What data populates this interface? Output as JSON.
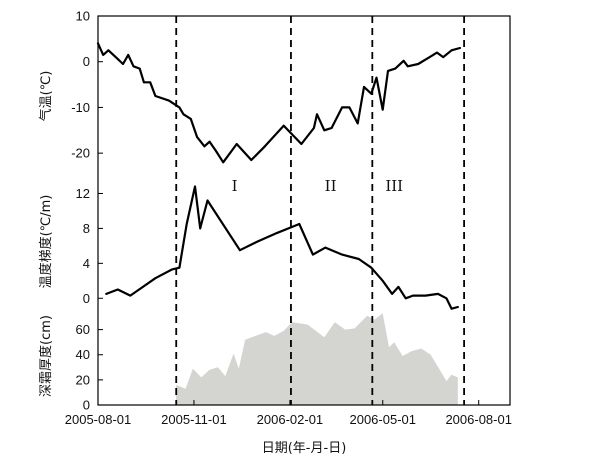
{
  "chart_data": {
    "type": "line",
    "xlabel": "日期(年-月-日)",
    "x_ticks": [
      "2005-08-01",
      "2005-11-01",
      "2006-02-01",
      "2006-05-01",
      "2006-08-01"
    ],
    "x_range": [
      "2005-08-01",
      "2006-08-31"
    ],
    "period_dividers": [
      "2005-10-15",
      "2006-02-02",
      "2006-04-21",
      "2006-07-18"
    ],
    "period_labels": [
      {
        "label": "I",
        "date": "2005-12-10"
      },
      {
        "label": "II",
        "date": "2006-03-12"
      },
      {
        "label": "III",
        "date": "2006-05-12"
      }
    ],
    "panels": [
      {
        "id": "air-temperature",
        "type": "line",
        "ylabel": "气温(℃)",
        "ylim": [
          -25,
          10
        ],
        "yticks": [
          10,
          0,
          -10,
          -20
        ],
        "series": [
          {
            "points": [
              [
                "2005-08-01",
                4
              ],
              [
                "2005-08-06",
                1.5
              ],
              [
                "2005-08-11",
                2.5
              ],
              [
                "2005-08-18",
                1
              ],
              [
                "2005-08-25",
                -0.5
              ],
              [
                "2005-08-30",
                1.5
              ],
              [
                "2005-09-04",
                -1
              ],
              [
                "2005-09-10",
                -1.5
              ],
              [
                "2005-09-14",
                -4.5
              ],
              [
                "2005-09-20",
                -4.5
              ],
              [
                "2005-09-25",
                -7.5
              ],
              [
                "2005-10-08",
                -8.5
              ],
              [
                "2005-10-18",
                -10
              ],
              [
                "2005-10-22",
                -11.5
              ],
              [
                "2005-10-29",
                -12.5
              ],
              [
                "2005-11-04",
                -16.5
              ],
              [
                "2005-11-11",
                -18.5
              ],
              [
                "2005-11-16",
                -17.5
              ],
              [
                "2005-11-22",
                -19.5
              ],
              [
                "2005-11-29",
                -22
              ],
              [
                "2005-12-12",
                -18
              ],
              [
                "2005-12-26",
                -21.5
              ],
              [
                "2006-01-08",
                -18.5
              ],
              [
                "2006-01-26",
                -14
              ],
              [
                "2006-02-12",
                -18
              ],
              [
                "2006-02-24",
                -14.5
              ],
              [
                "2006-02-27",
                -11.5
              ],
              [
                "2006-03-06",
                -15
              ],
              [
                "2006-03-13",
                -14.5
              ],
              [
                "2006-03-23",
                -10
              ],
              [
                "2006-03-30",
                -10
              ],
              [
                "2006-04-07",
                -13.5
              ],
              [
                "2006-04-13",
                -5.5
              ],
              [
                "2006-04-20",
                -7
              ],
              [
                "2006-04-25",
                -3.5
              ],
              [
                "2006-05-01",
                -10.5
              ],
              [
                "2006-05-06",
                -2
              ],
              [
                "2006-05-13",
                -1.5
              ],
              [
                "2006-05-21",
                0.2
              ],
              [
                "2006-05-25",
                -1
              ],
              [
                "2006-06-04",
                -0.5
              ],
              [
                "2006-06-15",
                1
              ],
              [
                "2006-06-22",
                2
              ],
              [
                "2006-06-28",
                1
              ],
              [
                "2006-07-06",
                2.5
              ],
              [
                "2006-07-14",
                3
              ]
            ]
          }
        ]
      },
      {
        "id": "temperature-gradient",
        "type": "line",
        "ylabel": "温度梯度(℃/m)",
        "ylim": [
          -1,
          14
        ],
        "yticks": [
          12,
          8,
          4,
          0
        ],
        "series": [
          {
            "points": [
              [
                "2005-08-09",
                0.5
              ],
              [
                "2005-08-20",
                1
              ],
              [
                "2005-09-01",
                0.3
              ],
              [
                "2005-09-13",
                1.3
              ],
              [
                "2005-09-25",
                2.3
              ],
              [
                "2005-10-11",
                3.3
              ],
              [
                "2005-10-18",
                3.5
              ],
              [
                "2005-10-25",
                8.5
              ],
              [
                "2005-11-02",
                12.8
              ],
              [
                "2005-11-07",
                8
              ],
              [
                "2005-11-14",
                11.2
              ],
              [
                "2005-12-15",
                5.5
              ],
              [
                "2006-01-01",
                6.5
              ],
              [
                "2006-01-20",
                7.5
              ],
              [
                "2006-02-10",
                8.5
              ],
              [
                "2006-02-23",
                5
              ],
              [
                "2006-03-07",
                5.8
              ],
              [
                "2006-03-23",
                5
              ],
              [
                "2006-04-08",
                4.5
              ],
              [
                "2006-04-20",
                3.5
              ],
              [
                "2006-05-01",
                2
              ],
              [
                "2006-05-10",
                0.5
              ],
              [
                "2006-05-16",
                1.3
              ],
              [
                "2006-05-23",
                0
              ],
              [
                "2006-05-30",
                0.3
              ],
              [
                "2006-06-11",
                0.3
              ],
              [
                "2006-06-23",
                0.5
              ],
              [
                "2006-07-01",
                0
              ],
              [
                "2006-07-06",
                -1.2
              ],
              [
                "2006-07-12",
                -1
              ]
            ]
          }
        ]
      },
      {
        "id": "frost-depth",
        "type": "area",
        "ylabel": "深霜厚度(cm)",
        "ylim": [
          0,
          78
        ],
        "yticks": [
          60,
          40,
          20,
          0
        ],
        "fill_color": "#d4d4d0",
        "series": [
          {
            "points": [
              [
                "2005-10-15",
                0
              ],
              [
                "2005-10-15",
                16
              ],
              [
                "2005-10-24",
                13
              ],
              [
                "2005-10-31",
                29
              ],
              [
                "2005-11-08",
                22
              ],
              [
                "2005-11-16",
                28
              ],
              [
                "2005-11-24",
                30
              ],
              [
                "2005-12-01",
                23
              ],
              [
                "2005-12-09",
                41
              ],
              [
                "2005-12-14",
                29
              ],
              [
                "2005-12-20",
                52
              ],
              [
                "2005-12-30",
                55
              ],
              [
                "2006-01-09",
                58
              ],
              [
                "2006-01-17",
                55
              ],
              [
                "2006-01-26",
                59
              ],
              [
                "2006-02-03",
                66
              ],
              [
                "2006-02-18",
                64
              ],
              [
                "2006-03-06",
                54
              ],
              [
                "2006-03-16",
                66
              ],
              [
                "2006-03-26",
                60
              ],
              [
                "2006-04-04",
                61
              ],
              [
                "2006-04-16",
                71
              ],
              [
                "2006-04-23",
                68
              ],
              [
                "2006-05-01",
                73
              ],
              [
                "2006-05-07",
                46
              ],
              [
                "2006-05-12",
                50
              ],
              [
                "2006-05-20",
                39
              ],
              [
                "2006-05-29",
                43
              ],
              [
                "2006-06-07",
                45
              ],
              [
                "2006-06-16",
                40
              ],
              [
                "2006-06-26",
                26
              ],
              [
                "2006-07-01",
                19
              ],
              [
                "2006-07-06",
                24
              ],
              [
                "2006-07-12",
                22
              ],
              [
                "2006-07-12",
                0
              ]
            ]
          }
        ]
      }
    ]
  }
}
